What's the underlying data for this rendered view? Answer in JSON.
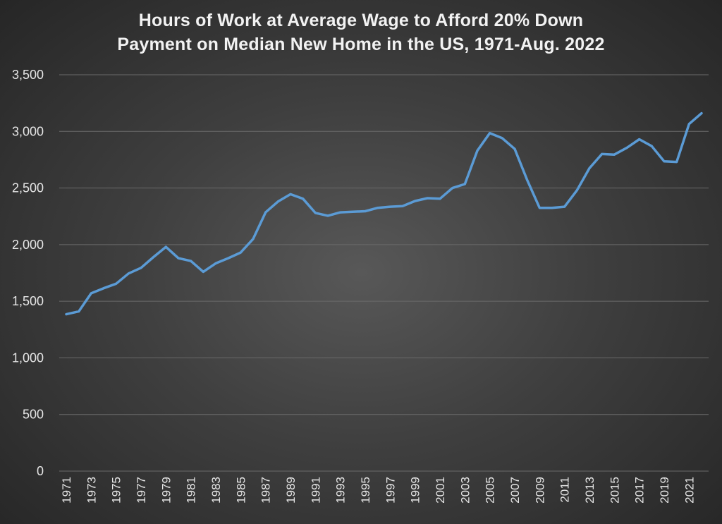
{
  "chart_data": {
    "type": "line",
    "title_lines": [
      "Hours of Work at Average Wage to Afford 20% Down",
      "Payment on Median New Home in the US, 1971-Aug. 2022"
    ],
    "xlabel": "",
    "ylabel": "",
    "ylim": [
      0,
      3500
    ],
    "yticks": [
      0,
      500,
      1000,
      1500,
      2000,
      2500,
      3000,
      3500
    ],
    "ytick_labels": [
      "0",
      "500",
      "1,000",
      "1,500",
      "2,000",
      "2,500",
      "3,000",
      "3,500"
    ],
    "xtick_labels": [
      "1971",
      "1973",
      "1975",
      "1977",
      "1979",
      "1981",
      "1983",
      "1985",
      "1987",
      "1989",
      "1991",
      "1993",
      "1995",
      "1997",
      "1999",
      "2001",
      "2003",
      "2005",
      "2007",
      "2009",
      "2011",
      "2013",
      "2015",
      "2017",
      "2019",
      "2021"
    ],
    "grid": true,
    "legend": "none",
    "line_color": "#5b9bd5",
    "x": [
      1971,
      1972,
      1973,
      1974,
      1975,
      1976,
      1977,
      1978,
      1979,
      1980,
      1981,
      1982,
      1983,
      1984,
      1985,
      1986,
      1987,
      1988,
      1989,
      1990,
      1991,
      1992,
      1993,
      1994,
      1995,
      1996,
      1997,
      1998,
      1999,
      2000,
      2001,
      2002,
      2003,
      2004,
      2005,
      2006,
      2007,
      2008,
      2009,
      2010,
      2011,
      2012,
      2013,
      2014,
      2015,
      2016,
      2017,
      2018,
      2019,
      2020,
      2021,
      2022
    ],
    "values": [
      1385,
      1410,
      1570,
      1615,
      1655,
      1745,
      1795,
      1890,
      1980,
      1880,
      1855,
      1760,
      1835,
      1880,
      1930,
      2050,
      2285,
      2380,
      2445,
      2405,
      2280,
      2255,
      2285,
      2290,
      2295,
      2325,
      2335,
      2340,
      2385,
      2410,
      2405,
      2500,
      2535,
      2830,
      2985,
      2940,
      2845,
      2570,
      2325,
      2325,
      2335,
      2480,
      2675,
      2800,
      2795,
      2855,
      2930,
      2870,
      2735,
      2730,
      3065,
      3160
    ]
  }
}
